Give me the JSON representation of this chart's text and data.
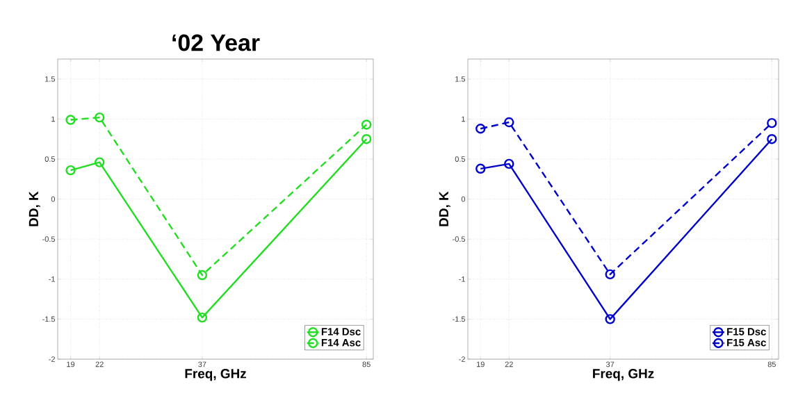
{
  "chart_data": [
    {
      "type": "line",
      "title": "‘02 Year",
      "xlabel": "Freq, GHz",
      "ylabel": "DD, K",
      "log": "x",
      "x": [
        19,
        22,
        37,
        85
      ],
      "xlim": [
        17.8,
        88
      ],
      "xticks": [
        19,
        22,
        37,
        85
      ],
      "ylim": [
        -2,
        1.75
      ],
      "yticks": [
        -2,
        -1.5,
        -1,
        -0.5,
        0,
        0.5,
        1,
        1.5
      ],
      "grid": true,
      "legend": "bottom right",
      "marker": "circle",
      "series": [
        {
          "name": "F14 Dsc",
          "color": "#22dd22",
          "line_style": "solid",
          "values": [
            0.36,
            0.46,
            -1.48,
            0.75
          ]
        },
        {
          "name": "F14 Asc",
          "color": "#22dd22",
          "line_style": "dashed",
          "values": [
            0.99,
            1.02,
            -0.95,
            0.93
          ]
        }
      ]
    },
    {
      "type": "line",
      "xlabel": "Freq, GHz",
      "ylabel": "DD, K",
      "log": "x",
      "x": [
        19,
        22,
        37,
        85
      ],
      "xlim": [
        17.8,
        88
      ],
      "xticks": [
        19,
        22,
        37,
        85
      ],
      "ylim": [
        -2,
        1.75
      ],
      "yticks": [
        -2,
        -1.5,
        -1,
        -0.5,
        0,
        0.5,
        1,
        1.5
      ],
      "grid": true,
      "legend": "bottom right",
      "marker": "circle",
      "series": [
        {
          "name": "F15 Dsc",
          "color": "#0000cc",
          "line_style": "solid",
          "values": [
            0.38,
            0.44,
            -1.5,
            0.75
          ]
        },
        {
          "name": "F15 Asc",
          "color": "#0000cc",
          "line_style": "dashed",
          "values": [
            0.88,
            0.96,
            -0.94,
            0.95
          ]
        }
      ]
    }
  ]
}
